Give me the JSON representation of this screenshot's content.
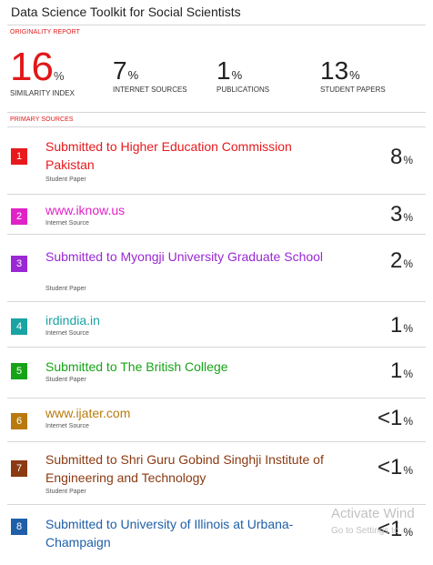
{
  "document": {
    "title": "Data Science Toolkit for Social Scientists"
  },
  "originality_report": {
    "label": "ORIGINALITY REPORT",
    "stats": [
      {
        "value": "16",
        "unit": "%",
        "caption": "SIMILARITY INDEX"
      },
      {
        "value": "7",
        "unit": "%",
        "caption": "INTERNET SOURCES"
      },
      {
        "value": "1",
        "unit": "%",
        "caption": "PUBLICATIONS"
      },
      {
        "value": "13",
        "unit": "%",
        "caption": "STUDENT PAPERS"
      }
    ]
  },
  "primary_sources": {
    "label": "PRIMARY SOURCES",
    "items": [
      {
        "rank": "1",
        "name": "Submitted to Higher Education Commission Pakistan",
        "type": "Student Paper",
        "percent": "8",
        "unit": "%",
        "color": "#e8191c"
      },
      {
        "rank": "2",
        "name": "www.iknow.us",
        "type": "Internet Source",
        "percent": "3",
        "unit": "%",
        "color": "#e023c8"
      },
      {
        "rank": "3",
        "name": "Submitted to Myongji University Graduate School",
        "type": "Student Paper",
        "percent": "2",
        "unit": "%",
        "color": "#9a28d4"
      },
      {
        "rank": "4",
        "name": "irdindia.in",
        "type": "Internet Source",
        "percent": "1",
        "unit": "%",
        "color": "#1aa3a3"
      },
      {
        "rank": "5",
        "name": "Submitted to The British College",
        "type": "Student Paper",
        "percent": "1",
        "unit": "%",
        "color": "#17a317"
      },
      {
        "rank": "6",
        "name": "www.ijater.com",
        "type": "Internet Source",
        "percent": "<1",
        "unit": "%",
        "color": "#b87a0e"
      },
      {
        "rank": "7",
        "name": "Submitted to Shri Guru Gobind Singhji Institute of Engineering and Technology",
        "type": "Student Paper",
        "percent": "<1",
        "unit": "%",
        "color": "#8b3a12"
      },
      {
        "rank": "8",
        "name": "Submitted to University of Illinois at Urbana-Champaign",
        "type": "",
        "percent": "<1",
        "unit": "%",
        "color": "#1f5fa8"
      }
    ]
  },
  "watermark": {
    "line1": "Activate Wind",
    "line2": "Go to Settings to"
  }
}
